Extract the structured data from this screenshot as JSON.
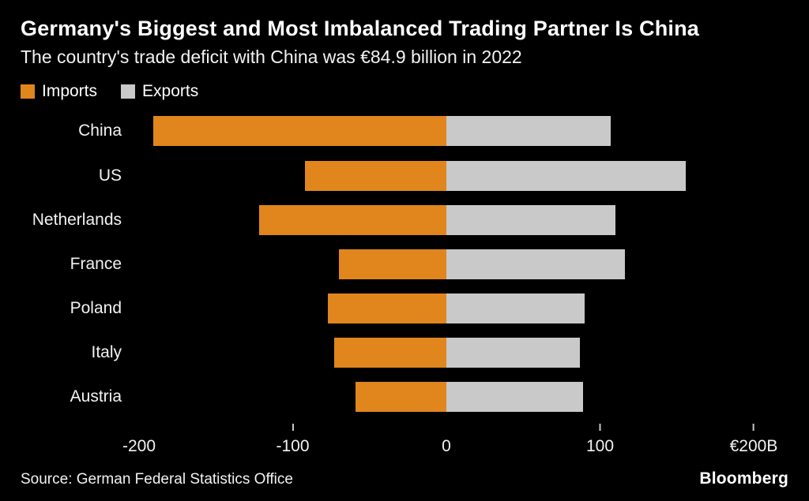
{
  "header": {
    "title": "Germany's Biggest and Most Imbalanced Trading Partner Is China",
    "subtitle": "The country's trade deficit with China was €84.9 billion in 2022"
  },
  "legend": [
    {
      "label": "Imports",
      "color": "#E0861C"
    },
    {
      "label": "Exports",
      "color": "#C9C9C9"
    }
  ],
  "chart_data": {
    "type": "bar",
    "orientation": "horizontal-diverging",
    "title": "Germany's Biggest and Most Imbalanced Trading Partner Is China",
    "subtitle": "The country's trade deficit with China was €84.9 billion in 2022",
    "unit": "€ billion",
    "categories": [
      "China",
      "US",
      "Netherlands",
      "France",
      "Poland",
      "Italy",
      "Austria"
    ],
    "series": [
      {
        "name": "Imports",
        "color": "#E0861C",
        "values": [
          -191,
          -92,
          -122,
          -70,
          -77,
          -73,
          -59
        ]
      },
      {
        "name": "Exports",
        "color": "#C9C9C9",
        "values": [
          107,
          156,
          110,
          116,
          90,
          87,
          89
        ]
      }
    ],
    "xlim": [
      -200,
      200
    ],
    "x_ticks": [
      {
        "value": -200,
        "label": "-200",
        "mark": false
      },
      {
        "value": -100,
        "label": "-100",
        "mark": true
      },
      {
        "value": 0,
        "label": "0",
        "mark": false
      },
      {
        "value": 100,
        "label": "100",
        "mark": true
      },
      {
        "value": 200,
        "label": "€200B",
        "mark": true
      }
    ],
    "grid": false,
    "legend_position": "top-left"
  },
  "footer": {
    "source": "Source: German Federal Statistics Office",
    "brand": "Bloomberg"
  }
}
